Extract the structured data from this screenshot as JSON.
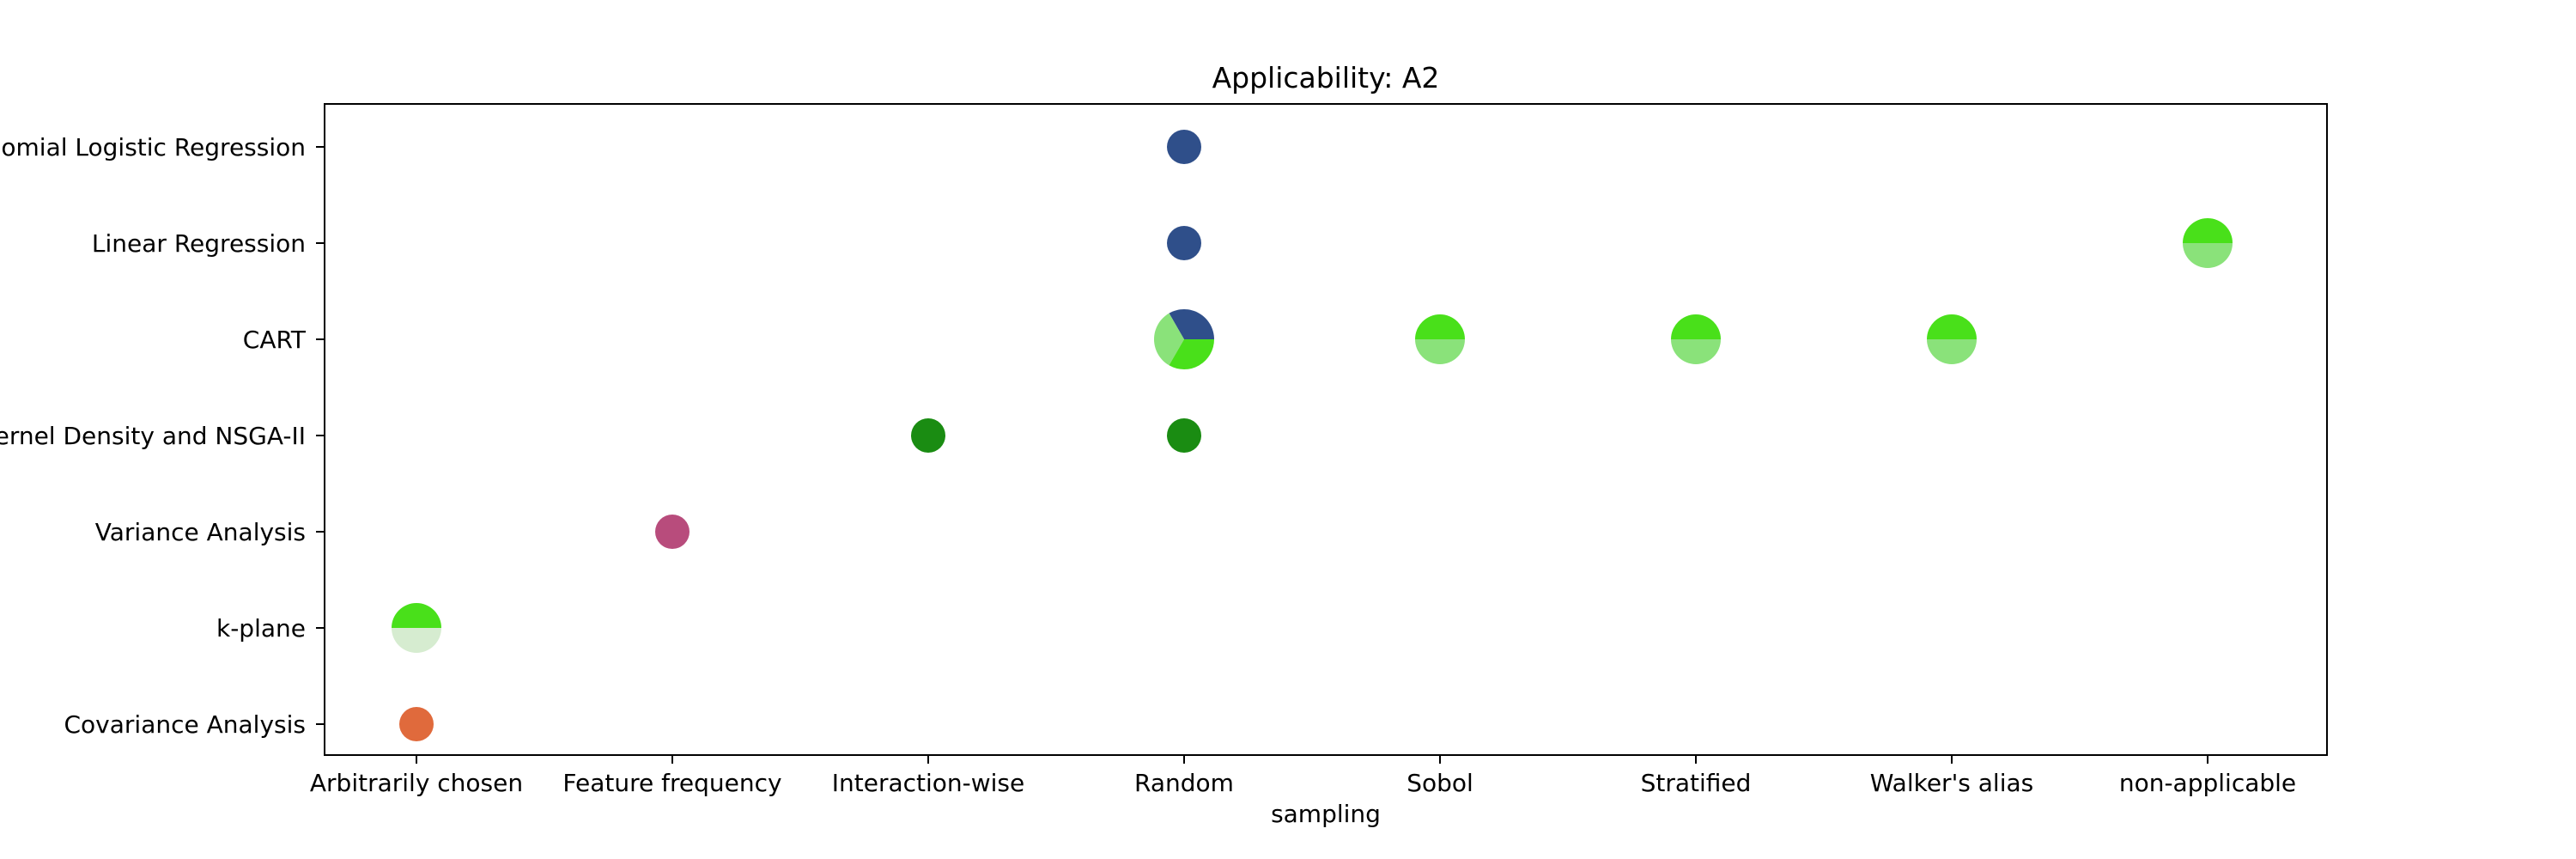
{
  "chart_data": {
    "type": "scatter",
    "title": "Applicability: A2",
    "xlabel": "sampling",
    "ylabel": "",
    "x_categories": [
      "Arbitrarily chosen",
      "Feature frequency",
      "Interaction-wise",
      "Random",
      "Sobol",
      "Stratified",
      "Walker's alias",
      "non-applicable"
    ],
    "y_categories": [
      "Covariance Analysis",
      "k-plane",
      "Variance Analysis",
      "Kernel Density and NSGA-II",
      "CART",
      "Linear Regression",
      "Multinomial Logistic Regression"
    ],
    "grid": false,
    "legend": "none",
    "points": [
      {
        "x": "Random",
        "y": "Multinomial Logistic Regression",
        "size": 1,
        "slices": [
          {
            "fraction": 1.0,
            "color": "#2f4f8a"
          }
        ]
      },
      {
        "x": "Random",
        "y": "Linear Regression",
        "size": 1,
        "slices": [
          {
            "fraction": 1.0,
            "color": "#2f4f8a"
          }
        ]
      },
      {
        "x": "non-applicable",
        "y": "Linear Regression",
        "size": 2,
        "slices": [
          {
            "fraction": 0.5,
            "color": "#49e01a"
          },
          {
            "fraction": 0.5,
            "color": "#8ae27a"
          }
        ]
      },
      {
        "x": "Random",
        "y": "CART",
        "size": 3,
        "slices": [
          {
            "fraction": 0.3333,
            "color": "#2f4f8a"
          },
          {
            "fraction": 0.3333,
            "color": "#8ae27a"
          },
          {
            "fraction": 0.3334,
            "color": "#49e01a"
          }
        ]
      },
      {
        "x": "Sobol",
        "y": "CART",
        "size": 2,
        "slices": [
          {
            "fraction": 0.5,
            "color": "#49e01a"
          },
          {
            "fraction": 0.5,
            "color": "#8ae27a"
          }
        ]
      },
      {
        "x": "Stratified",
        "y": "CART",
        "size": 2,
        "slices": [
          {
            "fraction": 0.5,
            "color": "#49e01a"
          },
          {
            "fraction": 0.5,
            "color": "#8ae27a"
          }
        ]
      },
      {
        "x": "Walker's alias",
        "y": "CART",
        "size": 2,
        "slices": [
          {
            "fraction": 0.5,
            "color": "#49e01a"
          },
          {
            "fraction": 0.5,
            "color": "#8ae27a"
          }
        ]
      },
      {
        "x": "Interaction-wise",
        "y": "Kernel Density and NSGA-II",
        "size": 1,
        "slices": [
          {
            "fraction": 1.0,
            "color": "#1a8c12"
          }
        ]
      },
      {
        "x": "Random",
        "y": "Kernel Density and NSGA-II",
        "size": 1,
        "slices": [
          {
            "fraction": 1.0,
            "color": "#1a8c12"
          }
        ]
      },
      {
        "x": "Feature frequency",
        "y": "Variance Analysis",
        "size": 1,
        "slices": [
          {
            "fraction": 1.0,
            "color": "#b84c7c"
          }
        ]
      },
      {
        "x": "Arbitrarily chosen",
        "y": "k-plane",
        "size": 2,
        "slices": [
          {
            "fraction": 0.5,
            "color": "#49e01a"
          },
          {
            "fraction": 0.5,
            "color": "#d6ecd0"
          }
        ]
      },
      {
        "x": "Arbitrarily chosen",
        "y": "Covariance Analysis",
        "size": 1,
        "slices": [
          {
            "fraction": 1.0,
            "color": "#e06a3c"
          }
        ]
      }
    ]
  }
}
